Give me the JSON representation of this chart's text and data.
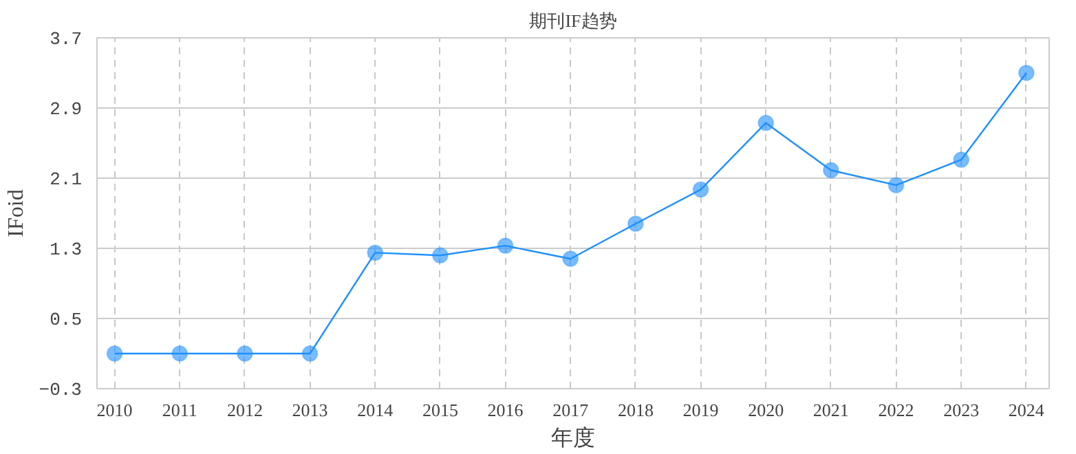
{
  "chart_data": {
    "type": "line",
    "title": "期刊IF趋势",
    "xlabel": "年度",
    "ylabel": "IFoid",
    "categories": [
      "2010",
      "2011",
      "2012",
      "2013",
      "2014",
      "2015",
      "2016",
      "2017",
      "2018",
      "2019",
      "2020",
      "2021",
      "2022",
      "2023",
      "2024"
    ],
    "series": [
      {
        "color": "#1e90ff",
        "values": [
          0.1,
          0.1,
          0.1,
          0.1,
          1.25,
          1.22,
          1.33,
          1.18,
          1.58,
          1.97,
          2.73,
          2.19,
          2.02,
          2.31,
          3.3
        ]
      }
    ],
    "ylim": [
      -0.3,
      3.7
    ],
    "yticks": [
      -0.3,
      0.5,
      1.3,
      2.1,
      2.9,
      3.7
    ],
    "grid": true,
    "marker": "circle",
    "line_style": "solid"
  }
}
